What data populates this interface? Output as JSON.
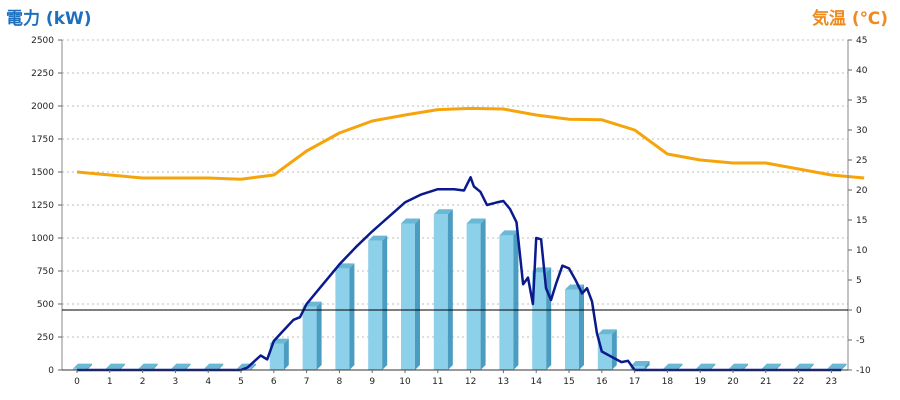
{
  "titles": {
    "left": "電力 (kW)",
    "right": "気温 (℃)"
  },
  "colors": {
    "bar_front": "#8cd0ea",
    "bar_side": "#4a9dc0",
    "bar_top": "#6ab7d6",
    "power_line": "#0a1a8c",
    "temp_line": "#f5a50b",
    "left_title": "#1f6fbf",
    "right_title": "#f08a1c",
    "grid": "#bdbdbd"
  },
  "chart_data": {
    "type": "bar",
    "categories": [
      "0",
      "1",
      "2",
      "3",
      "4",
      "5",
      "6",
      "7",
      "8",
      "9",
      "10",
      "11",
      "12",
      "13",
      "14",
      "15",
      "16",
      "17",
      "18",
      "19",
      "20",
      "21",
      "22",
      "23"
    ],
    "ylabel_left": "電力 (kW)",
    "ylabel_right": "気温 (℃)",
    "ylim_left": [
      0,
      2500
    ],
    "ylim_right": [
      -10,
      45
    ],
    "yticks_left": [
      0,
      250,
      500,
      750,
      1000,
      1250,
      1500,
      1750,
      2000,
      2250,
      2500
    ],
    "yticks_right": [
      -10,
      -5,
      0,
      5,
      10,
      15,
      20,
      25,
      30,
      35,
      40,
      45
    ],
    "grid": true,
    "bars": {
      "values": [
        10,
        10,
        10,
        10,
        10,
        10,
        200,
        480,
        770,
        980,
        1110,
        1180,
        1110,
        1020,
        740,
        610,
        270,
        30,
        10,
        10,
        10,
        10,
        10,
        10
      ]
    },
    "power_line": {
      "points": [
        [
          0,
          0
        ],
        [
          5,
          0
        ],
        [
          5.2,
          20
        ],
        [
          5.6,
          110
        ],
        [
          5.8,
          80
        ],
        [
          6.0,
          220
        ],
        [
          6.3,
          300
        ],
        [
          6.6,
          380
        ],
        [
          6.8,
          400
        ],
        [
          7.0,
          500
        ],
        [
          7.5,
          650
        ],
        [
          8.0,
          800
        ],
        [
          8.5,
          930
        ],
        [
          9.0,
          1050
        ],
        [
          9.5,
          1160
        ],
        [
          10.0,
          1270
        ],
        [
          10.5,
          1330
        ],
        [
          11.0,
          1370
        ],
        [
          11.5,
          1370
        ],
        [
          11.8,
          1360
        ],
        [
          12.0,
          1460
        ],
        [
          12.1,
          1390
        ],
        [
          12.3,
          1350
        ],
        [
          12.5,
          1250
        ],
        [
          12.8,
          1270
        ],
        [
          13.0,
          1280
        ],
        [
          13.2,
          1220
        ],
        [
          13.4,
          1120
        ],
        [
          13.6,
          650
        ],
        [
          13.75,
          700
        ],
        [
          13.9,
          500
        ],
        [
          14.0,
          1000
        ],
        [
          14.15,
          990
        ],
        [
          14.3,
          620
        ],
        [
          14.45,
          530
        ],
        [
          14.6,
          650
        ],
        [
          14.8,
          790
        ],
        [
          15.0,
          770
        ],
        [
          15.2,
          680
        ],
        [
          15.4,
          580
        ],
        [
          15.55,
          620
        ],
        [
          15.7,
          520
        ],
        [
          15.85,
          280
        ],
        [
          16.0,
          140
        ],
        [
          16.3,
          100
        ],
        [
          16.6,
          60
        ],
        [
          16.8,
          70
        ],
        [
          17.0,
          0
        ],
        [
          23.3,
          0
        ]
      ]
    },
    "temperature_line": {
      "values": [
        23,
        22.5,
        22,
        22,
        22,
        21.8,
        22.5,
        26.5,
        29.5,
        31.5,
        32.5,
        33.4,
        33.6,
        33.5,
        32.5,
        31.8,
        31.7,
        30,
        26,
        25,
        24.5,
        24.5,
        23.5,
        22.5,
        22.0
      ]
    }
  }
}
